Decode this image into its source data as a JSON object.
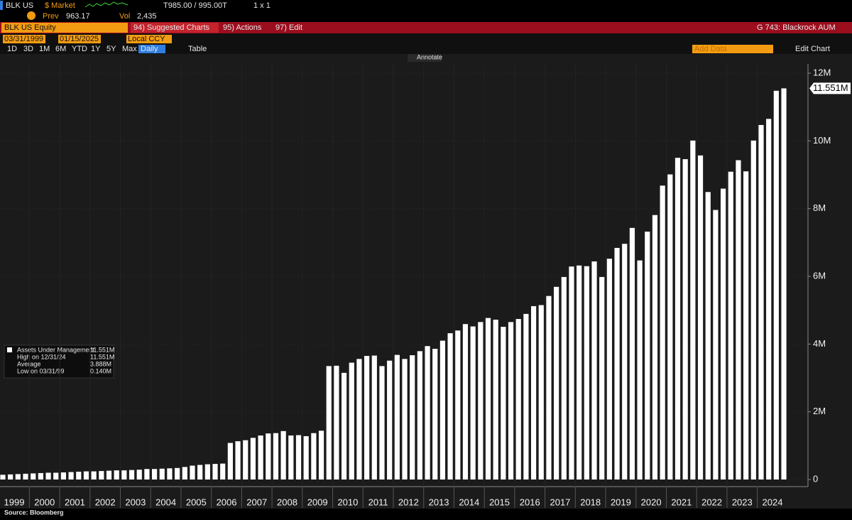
{
  "header": {
    "ticker": "BLK US",
    "market": "$ Market",
    "quote": "T985.00 / 995.00T",
    "size": "1 x 1",
    "prev_label": "Prev",
    "prev": "963.17",
    "vol_label": "Vol",
    "vol": "2,435",
    "security": "BLK US Equity",
    "menu": [
      "94) Suggested Charts",
      "95) Actions",
      "97) Edit"
    ],
    "chart_name": "G 743: Blackrock AUM",
    "start_date": "03/31/1999",
    "end_date": "01/15/2025",
    "currency": "Local CCY",
    "ranges": [
      "1D",
      "3D",
      "1M",
      "6M",
      "YTD",
      "1Y",
      "5Y",
      "Max"
    ],
    "frequency": "Daily",
    "table": "Table",
    "add_data": "Add Data",
    "edit_chart": "Edit Chart",
    "annotate": "Annotate"
  },
  "chart_data": {
    "type": "bar",
    "source": "Source: Bloomberg",
    "categories": [
      "1999",
      null,
      null,
      null,
      "2000",
      null,
      null,
      null,
      "2001",
      null,
      null,
      null,
      "2002",
      null,
      null,
      null,
      "2003",
      null,
      null,
      null,
      "2004",
      null,
      null,
      null,
      "2005",
      null,
      null,
      null,
      "2006",
      null,
      null,
      null,
      "2007",
      null,
      null,
      null,
      "2008",
      null,
      null,
      null,
      "2009",
      null,
      null,
      null,
      "2010",
      null,
      null,
      null,
      "2011",
      null,
      null,
      null,
      "2012",
      null,
      null,
      null,
      "2013",
      null,
      null,
      null,
      "2014",
      null,
      null,
      null,
      "2015",
      null,
      null,
      null,
      "2016",
      null,
      null,
      null,
      "2017",
      null,
      null,
      null,
      "2018",
      null,
      null,
      null,
      "2019",
      null,
      null,
      null,
      "2020",
      null,
      null,
      null,
      "2021",
      null,
      null,
      null,
      "2022",
      null,
      null,
      null,
      "2023",
      null,
      null,
      null,
      "2024",
      null,
      null,
      null
    ],
    "series": [
      {
        "name": "Assets Under Management",
        "color": "#ffffff",
        "values": [
          0.14,
          0.15,
          0.16,
          0.17,
          0.18,
          0.19,
          0.2,
          0.2,
          0.21,
          0.22,
          0.23,
          0.24,
          0.24,
          0.25,
          0.26,
          0.27,
          0.27,
          0.28,
          0.29,
          0.31,
          0.31,
          0.32,
          0.33,
          0.34,
          0.37,
          0.41,
          0.43,
          0.45,
          0.46,
          0.47,
          1.08,
          1.13,
          1.16,
          1.23,
          1.3,
          1.36,
          1.37,
          1.43,
          1.3,
          1.31,
          1.28,
          1.37,
          1.44,
          3.35,
          3.36,
          3.15,
          3.45,
          3.56,
          3.65,
          3.66,
          3.35,
          3.51,
          3.68,
          3.56,
          3.67,
          3.79,
          3.94,
          3.86,
          4.1,
          4.32,
          4.4,
          4.59,
          4.52,
          4.65,
          4.77,
          4.72,
          4.51,
          4.65,
          4.74,
          4.89,
          5.12,
          5.15,
          5.42,
          5.69,
          5.98,
          6.29,
          6.32,
          6.3,
          6.44,
          5.98,
          6.52,
          6.84,
          6.96,
          7.43,
          6.47,
          7.32,
          7.81,
          8.68,
          9.01,
          9.5,
          9.46,
          10.01,
          9.57,
          8.49,
          7.96,
          8.59,
          9.09,
          9.43,
          9.1,
          10.01,
          10.47,
          10.65,
          11.48,
          11.551
        ],
        "last_label": "11.551M"
      }
    ],
    "legend_stats": [
      [
        "High on 12/31/24",
        "11.551M"
      ],
      [
        "Average",
        "3.888M"
      ],
      [
        "Low on 03/31/99",
        "0.140M"
      ]
    ],
    "ylim": [
      0,
      12
    ],
    "yticks": [
      0,
      {
        "value": 2,
        "label": "2M"
      },
      {
        "value": 4,
        "label": "4M"
      },
      {
        "value": 6,
        "label": "6M"
      },
      {
        "value": 8,
        "label": "8M"
      },
      {
        "value": 10,
        "label": "10M"
      },
      {
        "value": 12,
        "label": "12M"
      }
    ],
    "background": "#1b1b1b"
  }
}
